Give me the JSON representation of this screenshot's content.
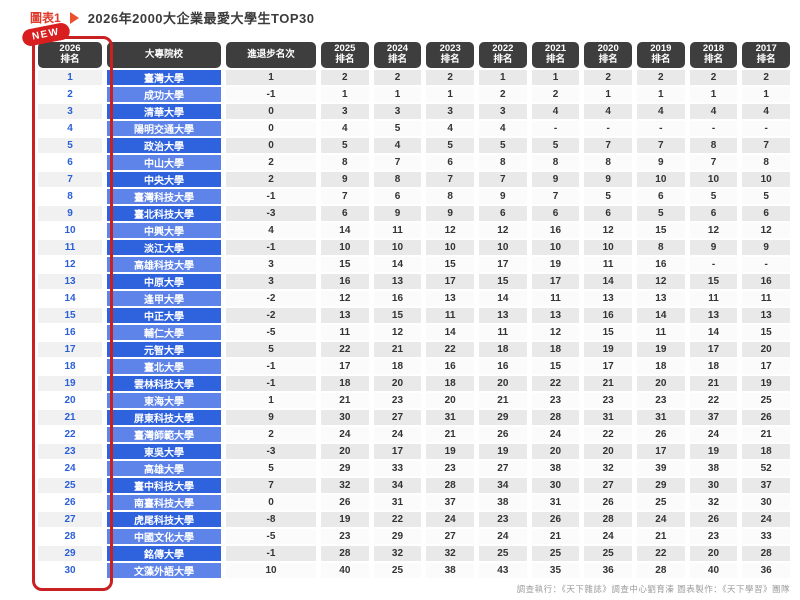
{
  "figure": {
    "label": "圖表1",
    "title": "2026年2000大企業最愛大學生TOP30",
    "badge": "NEW",
    "credit": "調查執行：《天下雜誌》調查中心劉育溱 圖表製作：《天下學習》團隊"
  },
  "colors": {
    "accent_red": "#c92121",
    "header_bg": "#3e3e3e",
    "school_blue_dark": "#2f63de",
    "school_blue_light": "#5e84ea",
    "rank_text_blue": "#2a5fd7",
    "title_red": "#e03a2a"
  },
  "chart_data": {
    "type": "table",
    "title": "2026年2000大企業最愛大學生TOP30",
    "headers": [
      [
        "2026",
        "排名"
      ],
      [
        "大專院校"
      ],
      [
        "進退步名次"
      ],
      [
        "2025",
        "排名"
      ],
      [
        "2024",
        "排名"
      ],
      [
        "2023",
        "排名"
      ],
      [
        "2022",
        "排名"
      ],
      [
        "2021",
        "排名"
      ],
      [
        "2020",
        "排名"
      ],
      [
        "2019",
        "排名"
      ],
      [
        "2018",
        "排名"
      ],
      [
        "2017",
        "排名"
      ]
    ],
    "rows": [
      {
        "rank": "1",
        "school": "臺灣大學",
        "change": "1",
        "years": [
          "2",
          "2",
          "2",
          "1",
          "1",
          "2",
          "2",
          "2",
          "2"
        ]
      },
      {
        "rank": "2",
        "school": "成功大學",
        "change": "-1",
        "years": [
          "1",
          "1",
          "1",
          "2",
          "2",
          "1",
          "1",
          "1",
          "1"
        ]
      },
      {
        "rank": "3",
        "school": "清華大學",
        "change": "0",
        "years": [
          "3",
          "3",
          "3",
          "3",
          "4",
          "4",
          "4",
          "4",
          "4"
        ]
      },
      {
        "rank": "4",
        "school": "陽明交通大學",
        "change": "0",
        "years": [
          "4",
          "5",
          "4",
          "4",
          "-",
          "-",
          "-",
          "-",
          "-"
        ]
      },
      {
        "rank": "5",
        "school": "政治大學",
        "change": "0",
        "years": [
          "5",
          "4",
          "5",
          "5",
          "5",
          "7",
          "7",
          "8",
          "7"
        ]
      },
      {
        "rank": "6",
        "school": "中山大學",
        "change": "2",
        "years": [
          "8",
          "7",
          "6",
          "8",
          "8",
          "8",
          "9",
          "7",
          "8"
        ]
      },
      {
        "rank": "7",
        "school": "中央大學",
        "change": "2",
        "years": [
          "9",
          "8",
          "7",
          "7",
          "9",
          "9",
          "10",
          "10",
          "10"
        ]
      },
      {
        "rank": "8",
        "school": "臺灣科技大學",
        "change": "-1",
        "years": [
          "7",
          "6",
          "8",
          "9",
          "7",
          "5",
          "6",
          "5",
          "5"
        ]
      },
      {
        "rank": "9",
        "school": "臺北科技大學",
        "change": "-3",
        "years": [
          "6",
          "9",
          "9",
          "6",
          "6",
          "6",
          "5",
          "6",
          "6"
        ]
      },
      {
        "rank": "10",
        "school": "中興大學",
        "change": "4",
        "years": [
          "14",
          "11",
          "12",
          "12",
          "16",
          "12",
          "15",
          "12",
          "12"
        ]
      },
      {
        "rank": "11",
        "school": "淡江大學",
        "change": "-1",
        "years": [
          "10",
          "10",
          "10",
          "10",
          "10",
          "10",
          "8",
          "9",
          "9"
        ]
      },
      {
        "rank": "12",
        "school": "高雄科技大學",
        "change": "3",
        "years": [
          "15",
          "14",
          "15",
          "17",
          "19",
          "11",
          "16",
          "-",
          "-"
        ]
      },
      {
        "rank": "13",
        "school": "中原大學",
        "change": "3",
        "years": [
          "16",
          "13",
          "17",
          "15",
          "17",
          "14",
          "12",
          "15",
          "16"
        ]
      },
      {
        "rank": "14",
        "school": "逢甲大學",
        "change": "-2",
        "years": [
          "12",
          "16",
          "13",
          "14",
          "11",
          "13",
          "13",
          "11",
          "11"
        ]
      },
      {
        "rank": "15",
        "school": "中正大學",
        "change": "-2",
        "years": [
          "13",
          "15",
          "11",
          "13",
          "13",
          "16",
          "14",
          "13",
          "13"
        ]
      },
      {
        "rank": "16",
        "school": "輔仁大學",
        "change": "-5",
        "years": [
          "11",
          "12",
          "14",
          "11",
          "12",
          "15",
          "11",
          "14",
          "15"
        ]
      },
      {
        "rank": "17",
        "school": "元智大學",
        "change": "5",
        "years": [
          "22",
          "21",
          "22",
          "18",
          "18",
          "19",
          "19",
          "17",
          "20"
        ]
      },
      {
        "rank": "18",
        "school": "臺北大學",
        "change": "-1",
        "years": [
          "17",
          "18",
          "16",
          "16",
          "15",
          "17",
          "18",
          "18",
          "17"
        ]
      },
      {
        "rank": "19",
        "school": "雲林科技大學",
        "change": "-1",
        "years": [
          "18",
          "20",
          "18",
          "20",
          "22",
          "21",
          "20",
          "21",
          "19"
        ]
      },
      {
        "rank": "20",
        "school": "東海大學",
        "change": "1",
        "years": [
          "21",
          "23",
          "20",
          "21",
          "23",
          "23",
          "23",
          "22",
          "25"
        ]
      },
      {
        "rank": "21",
        "school": "屏東科技大學",
        "change": "9",
        "years": [
          "30",
          "27",
          "31",
          "29",
          "28",
          "31",
          "31",
          "37",
          "26"
        ]
      },
      {
        "rank": "22",
        "school": "臺灣師範大學",
        "change": "2",
        "years": [
          "24",
          "24",
          "21",
          "26",
          "24",
          "22",
          "26",
          "24",
          "21"
        ]
      },
      {
        "rank": "23",
        "school": "東吳大學",
        "change": "-3",
        "years": [
          "20",
          "17",
          "19",
          "19",
          "20",
          "20",
          "17",
          "19",
          "18"
        ]
      },
      {
        "rank": "24",
        "school": "高雄大學",
        "change": "5",
        "years": [
          "29",
          "33",
          "23",
          "27",
          "38",
          "32",
          "39",
          "38",
          "52"
        ]
      },
      {
        "rank": "25",
        "school": "臺中科技大學",
        "change": "7",
        "years": [
          "32",
          "34",
          "28",
          "34",
          "30",
          "27",
          "29",
          "30",
          "37"
        ]
      },
      {
        "rank": "26",
        "school": "南臺科技大學",
        "change": "0",
        "years": [
          "26",
          "31",
          "37",
          "38",
          "31",
          "26",
          "25",
          "32",
          "30"
        ]
      },
      {
        "rank": "27",
        "school": "虎尾科技大學",
        "change": "-8",
        "years": [
          "19",
          "22",
          "24",
          "23",
          "26",
          "28",
          "24",
          "26",
          "24"
        ]
      },
      {
        "rank": "28",
        "school": "中國文化大學",
        "change": "-5",
        "years": [
          "23",
          "29",
          "27",
          "24",
          "21",
          "24",
          "21",
          "23",
          "33"
        ]
      },
      {
        "rank": "29",
        "school": "銘傳大學",
        "change": "-1",
        "years": [
          "28",
          "32",
          "32",
          "25",
          "25",
          "25",
          "22",
          "20",
          "28"
        ]
      },
      {
        "rank": "30",
        "school": "文藻外語大學",
        "change": "10",
        "years": [
          "40",
          "25",
          "38",
          "43",
          "35",
          "36",
          "28",
          "40",
          "36"
        ]
      }
    ]
  }
}
